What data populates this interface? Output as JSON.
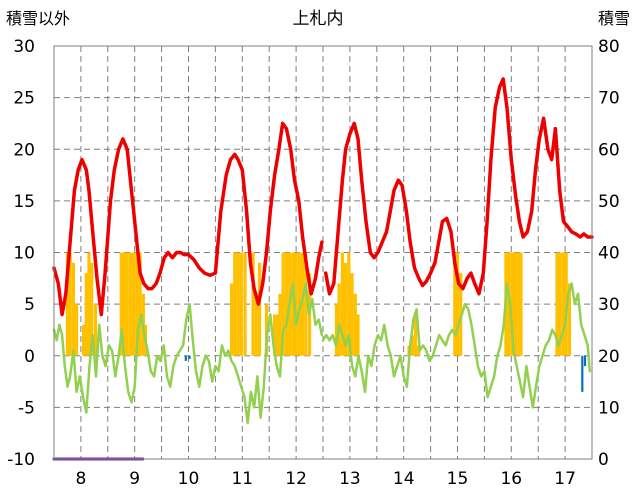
{
  "chart_data": {
    "type": "line",
    "title": "上札内",
    "ylabel": "積雪以外",
    "y2label": "積雪",
    "ylim": [
      -10,
      30
    ],
    "y2lim": [
      0,
      80
    ],
    "yticks": [
      "30",
      "25",
      "20",
      "15",
      "10",
      "5",
      "0",
      "-5",
      "-10"
    ],
    "y2ticks": [
      "80",
      "70",
      "60",
      "50",
      "40",
      "30",
      "20",
      "10",
      "0"
    ],
    "xlim": [
      7.5,
      17.5
    ],
    "xticks": [
      8,
      9,
      10,
      11,
      12,
      13,
      14,
      15,
      16,
      17
    ],
    "xtick_labels": [
      "8",
      "9",
      "10",
      "11",
      "12",
      "13",
      "14",
      "15",
      "16",
      "17"
    ],
    "grid": true,
    "colors": {
      "temperature": "#ee0000",
      "dewpoint": "#92d050",
      "sunshine": "#ffc000",
      "precipitation": "#0070c0",
      "snow": "#7030a0",
      "grid": "#7f7f7f"
    },
    "series": [
      {
        "kind": "line",
        "color_key": "temperature",
        "x": [
          7.5,
          7.58,
          7.65,
          7.72,
          7.8,
          7.88,
          7.95,
          8.02,
          8.1,
          8.15,
          8.22,
          8.3,
          8.38,
          8.45,
          8.55,
          8.62,
          8.7,
          8.78,
          8.86,
          8.92,
          9.0,
          9.05,
          9.1,
          9.17,
          9.25,
          9.32,
          9.4,
          9.47,
          9.55,
          9.62,
          9.7,
          9.78,
          9.85,
          9.92,
          10.0,
          10.1,
          10.2,
          10.3,
          10.4,
          10.5,
          10.6,
          10.7,
          10.78,
          10.86,
          10.92,
          11.0,
          11.08,
          11.15,
          11.22,
          11.3,
          11.38,
          11.45,
          11.52,
          11.6,
          11.68,
          11.75,
          11.82,
          11.9,
          11.97,
          12.05,
          12.12,
          12.2,
          12.28,
          12.36,
          12.42,
          12.48
        ],
        "y": [
          8.5,
          7.0,
          4.0,
          6.0,
          11.0,
          16.0,
          18.0,
          19.0,
          18.0,
          16.0,
          12.0,
          7.5,
          4.0,
          8.0,
          15.0,
          18.0,
          20.0,
          21.0,
          20.0,
          17.0,
          13.0,
          10.5,
          8.0,
          7.0,
          6.5,
          6.5,
          7.0,
          8.0,
          9.5,
          10.0,
          9.5,
          10.0,
          10.0,
          9.8,
          9.8,
          9.3,
          8.5,
          8.0,
          7.8,
          8.0,
          14.0,
          17.5,
          19.0,
          19.5,
          19.0,
          18.0,
          14.0,
          9.0,
          6.5,
          5.0,
          7.0,
          10.0,
          14.0,
          17.5,
          20.0,
          22.5,
          22.0,
          20.0,
          17.0,
          15.0,
          11.5,
          8.5,
          6.0,
          7.5,
          9.5,
          11.0
        ]
      },
      {
        "kind": "line",
        "color_key": "temperature",
        "x": [
          12.55,
          12.62,
          12.7,
          12.78,
          12.86,
          12.92,
          13.0,
          13.08,
          13.15,
          13.22,
          13.3,
          13.38,
          13.45,
          13.52,
          13.6,
          13.68,
          13.75,
          13.82,
          13.9,
          13.97,
          14.05,
          14.12,
          14.2,
          14.28,
          14.35,
          14.42,
          14.5,
          14.58,
          14.65,
          14.72,
          14.8,
          14.88,
          14.95,
          15.02,
          15.1,
          15.18,
          15.25,
          15.32,
          15.4,
          15.48,
          15.55,
          15.62,
          15.7,
          15.78,
          15.85,
          15.92,
          16.0,
          16.08,
          16.15,
          16.22,
          16.3,
          16.38,
          16.45,
          16.52,
          16.6,
          16.68,
          16.75,
          16.82,
          16.9,
          16.97,
          17.05,
          17.12,
          17.2,
          17.28,
          17.35,
          17.42,
          17.5
        ],
        "y": [
          8.0,
          6.0,
          7.0,
          12.0,
          17.0,
          20.0,
          21.5,
          22.5,
          21.0,
          17.0,
          13.0,
          10.0,
          9.5,
          10.0,
          11.0,
          12.0,
          14.0,
          16.0,
          17.0,
          16.5,
          14.0,
          11.0,
          8.5,
          7.5,
          6.8,
          7.2,
          8.0,
          9.0,
          11.0,
          13.0,
          13.3,
          12.0,
          9.0,
          7.0,
          6.5,
          7.5,
          8.0,
          7.0,
          6.0,
          8.0,
          13.0,
          19.0,
          24.0,
          26.0,
          26.8,
          24.0,
          19.0,
          15.5,
          13.0,
          11.5,
          12.0,
          14.0,
          18.0,
          21.0,
          23.0,
          20.0,
          19.0,
          22.0,
          16.0,
          13.0,
          12.5,
          12.0,
          11.8,
          11.5,
          11.8,
          11.5,
          11.5
        ]
      },
      {
        "kind": "line",
        "color_key": "dewpoint",
        "x": [
          7.5,
          7.55,
          7.6,
          7.65,
          7.7,
          7.75,
          7.8,
          7.86,
          7.92,
          7.98,
          8.04,
          8.1,
          8.16,
          8.22,
          8.28,
          8.34,
          8.4,
          8.46,
          8.52,
          8.58,
          8.64,
          8.7,
          8.76,
          8.82,
          8.88,
          8.94,
          9.0,
          9.06,
          9.12,
          9.18,
          9.24,
          9.3,
          9.36,
          9.42,
          9.48,
          9.54,
          9.6,
          9.66,
          9.72,
          9.78,
          9.84,
          9.9,
          9.96,
          10.02,
          10.08,
          10.14,
          10.2,
          10.26,
          10.32,
          10.38,
          10.44,
          10.5,
          10.56,
          10.62,
          10.68,
          10.74,
          10.8,
          10.86,
          10.92,
          10.98,
          11.04,
          11.1,
          11.16,
          11.22,
          11.28,
          11.34,
          11.4,
          11.46,
          11.52,
          11.58,
          11.64,
          11.7,
          11.76,
          11.82,
          11.88,
          11.94,
          12.0,
          12.06,
          12.12,
          12.18,
          12.24,
          12.3,
          12.36,
          12.42,
          12.48
        ],
        "y": [
          2.5,
          1.5,
          3.0,
          2.0,
          -1.0,
          -3.0,
          -2.0,
          0.5,
          -3.5,
          -2.0,
          -4.0,
          -5.5,
          -1.0,
          2.0,
          -2.0,
          3.0,
          0.0,
          -1.0,
          1.0,
          0.5,
          -2.0,
          0.0,
          2.5,
          -1.0,
          -3.5,
          -4.5,
          -3.0,
          2.5,
          4.0,
          2.0,
          0.5,
          -1.5,
          -2.0,
          0.0,
          -0.5,
          1.0,
          -2.0,
          -3.0,
          -1.0,
          0.0,
          0.5,
          1.0,
          3.5,
          5.0,
          1.5,
          -1.5,
          -3.0,
          -1.0,
          0.0,
          -0.5,
          -2.5,
          -1.0,
          -1.5,
          1.0,
          0.0,
          0.5,
          -0.5,
          -1.0,
          -2.0,
          -3.0,
          -4.0,
          -6.5,
          -3.5,
          -5.0,
          -2.0,
          -6.0,
          -3.0,
          2.0,
          4.0,
          1.0,
          -1.0,
          -2.0,
          2.5,
          3.0,
          5.0,
          7.0,
          3.0,
          4.5,
          5.5,
          7.0,
          4.0,
          5.5,
          3.0,
          3.5,
          2.0
        ]
      },
      {
        "kind": "line",
        "color_key": "dewpoint",
        "x": [
          12.5,
          12.56,
          12.62,
          12.68,
          12.74,
          12.8,
          12.86,
          12.92,
          12.98,
          13.04,
          13.1,
          13.16,
          13.22,
          13.28,
          13.34,
          13.4,
          13.46,
          13.52,
          13.58,
          13.64,
          13.7,
          13.76,
          13.82,
          13.88,
          13.94,
          14.0,
          14.06,
          14.12,
          14.18,
          14.24,
          14.3,
          14.36,
          14.42,
          14.48,
          14.54,
          14.6,
          14.66,
          14.72,
          14.78,
          14.84,
          14.9,
          14.96,
          15.02,
          15.08,
          15.14,
          15.2,
          15.26,
          15.32,
          15.38,
          15.44,
          15.5,
          15.56,
          15.62,
          15.68,
          15.74,
          15.8,
          15.86,
          15.92,
          15.98,
          16.04,
          16.1,
          16.16,
          16.22,
          16.28,
          16.34,
          16.4,
          16.46,
          16.52,
          16.58,
          16.64,
          16.7,
          16.76,
          16.82,
          16.88,
          16.94,
          17.0,
          17.06,
          17.12,
          17.18,
          17.24,
          17.3,
          17.36,
          17.42,
          17.46
        ],
        "y": [
          1.5,
          2.0,
          1.5,
          2.0,
          1.0,
          3.0,
          2.0,
          1.0,
          2.0,
          -1.0,
          -2.0,
          0.0,
          -1.5,
          -3.5,
          0.0,
          -1.0,
          1.0,
          2.0,
          1.5,
          3.0,
          1.0,
          0.0,
          -2.0,
          -1.0,
          0.0,
          -2.0,
          -3.0,
          1.0,
          3.5,
          4.5,
          0.5,
          1.0,
          0.5,
          -0.5,
          0.0,
          1.0,
          2.0,
          1.5,
          1.0,
          2.0,
          2.5,
          2.0,
          3.0,
          4.0,
          5.0,
          4.5,
          3.0,
          1.0,
          -1.0,
          -2.0,
          -1.5,
          -4.0,
          -3.0,
          -2.0,
          0.0,
          1.0,
          3.0,
          7.0,
          5.0,
          0.5,
          -1.0,
          -2.5,
          -4.0,
          -1.0,
          -3.0,
          -5.0,
          -3.0,
          -1.0,
          0.0,
          1.0,
          1.5,
          2.5,
          2.0,
          1.0,
          2.0,
          3.0,
          6.0,
          7.0,
          5.0,
          6.0,
          3.0,
          2.0,
          1.0,
          -1.5
        ]
      },
      {
        "kind": "bars",
        "color_key": "sunshine",
        "axis": "left",
        "width": 0.06,
        "x": [
          7.75,
          7.8,
          7.86,
          7.92,
          8.05,
          8.1,
          8.15,
          8.2,
          8.27,
          8.75,
          8.8,
          8.86,
          8.92,
          8.98,
          9.04,
          9.1,
          9.16,
          9.2,
          10.8,
          10.86,
          10.92,
          10.98,
          11.05,
          11.2,
          11.26,
          11.32,
          11.45,
          11.6,
          11.65,
          11.7,
          11.76,
          11.82,
          11.88,
          11.94,
          12.0,
          12.06,
          12.12,
          12.18,
          12.25,
          12.75,
          12.8,
          12.86,
          12.92,
          12.98,
          13.04,
          13.1,
          13.15,
          14.1,
          14.16,
          14.22,
          14.28,
          14.95,
          15.0,
          15.06,
          15.9,
          15.96,
          16.02,
          16.08,
          16.14,
          16.18,
          16.85,
          16.9,
          16.96,
          17.02,
          17.08
        ],
        "y": [
          10,
          10,
          9,
          5,
          3,
          8,
          10,
          9,
          5,
          10,
          10,
          10,
          10,
          10,
          10,
          10,
          6,
          3,
          7,
          10,
          10,
          10,
          10,
          10,
          6,
          9,
          5,
          4,
          4,
          6,
          10,
          10,
          10,
          10,
          10,
          10,
          10,
          10,
          8,
          5,
          7,
          10,
          9,
          10,
          8,
          6,
          4,
          1,
          2,
          4,
          1,
          10,
          10,
          8,
          10,
          10,
          10,
          10,
          10,
          10,
          10,
          10,
          10,
          10,
          7
        ]
      },
      {
        "kind": "bars",
        "color_key": "precipitation",
        "axis": "left",
        "width": 0.04,
        "x": [
          9.95,
          10.02,
          17.32,
          17.37
        ],
        "y": [
          -0.5,
          -0.3,
          -3.5,
          -1.0
        ]
      },
      {
        "kind": "line",
        "color_key": "snow",
        "axis": "right",
        "x": [
          7.5,
          9.15
        ],
        "y": [
          0.0,
          0.0
        ]
      }
    ]
  }
}
